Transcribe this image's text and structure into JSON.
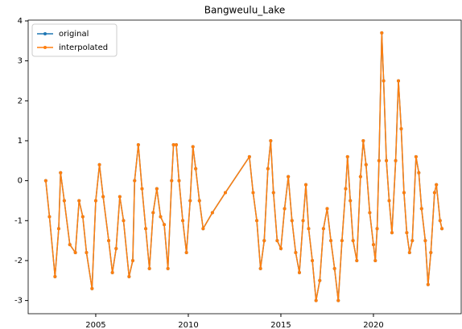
{
  "chart_data": {
    "type": "line",
    "title": "Bangweulu_Lake",
    "x": [
      2002.3,
      2002.5,
      2002.8,
      2003.0,
      2003.1,
      2003.3,
      2003.6,
      2003.9,
      2004.1,
      2004.3,
      2004.5,
      2004.8,
      2005.0,
      2005.2,
      2005.4,
      2005.7,
      2005.9,
      2006.1,
      2006.3,
      2006.5,
      2006.8,
      2007.0,
      2007.1,
      2007.3,
      2007.5,
      2007.7,
      2007.9,
      2008.1,
      2008.3,
      2008.5,
      2008.7,
      2008.9,
      2009.1,
      2009.2,
      2009.35,
      2009.5,
      2009.7,
      2009.9,
      2010.1,
      2010.25,
      2010.4,
      2010.6,
      2010.8,
      2011.3,
      2012.0,
      2013.3,
      2013.5,
      2013.7,
      2013.9,
      2014.1,
      2014.3,
      2014.45,
      2014.6,
      2014.8,
      2015.0,
      2015.2,
      2015.4,
      2015.6,
      2015.8,
      2016.0,
      2016.2,
      2016.35,
      2016.5,
      2016.7,
      2016.9,
      2017.1,
      2017.3,
      2017.5,
      2017.7,
      2017.9,
      2018.1,
      2018.3,
      2018.5,
      2018.6,
      2018.75,
      2018.9,
      2019.1,
      2019.3,
      2019.45,
      2019.6,
      2019.8,
      2020.0,
      2020.1,
      2020.2,
      2020.3,
      2020.45,
      2020.55,
      2020.7,
      2020.85,
      2021.0,
      2021.2,
      2021.35,
      2021.5,
      2021.65,
      2021.8,
      2021.95,
      2022.1,
      2022.3,
      2022.45,
      2022.6,
      2022.8,
      2022.95,
      2023.1,
      2023.3,
      2023.4,
      2023.6,
      2023.7
    ],
    "series": [
      {
        "name": "original",
        "color": "#1f77b4",
        "values": [
          0,
          -0.9,
          -2.4,
          -1.2,
          0.2,
          -0.5,
          -1.6,
          -1.8,
          -0.5,
          -0.9,
          -1.8,
          -2.7,
          -0.5,
          0.4,
          -0.4,
          -1.5,
          -2.3,
          -1.7,
          -0.4,
          -1.0,
          -2.4,
          -2.0,
          0.0,
          0.9,
          -0.2,
          -1.2,
          -2.2,
          -0.8,
          -0.2,
          -0.9,
          -1.1,
          -2.2,
          0.0,
          0.9,
          0.9,
          0.0,
          -1.0,
          -1.8,
          -0.5,
          0.85,
          0.3,
          -0.5,
          -1.2,
          -0.8,
          -0.3,
          0.6,
          -0.3,
          -1.0,
          -2.2,
          -1.5,
          0.3,
          1.0,
          -0.3,
          -1.5,
          -1.7,
          -0.7,
          0.1,
          -1.0,
          -1.8,
          -2.3,
          -1.0,
          -0.1,
          -1.2,
          -2.0,
          -3.0,
          -2.5,
          -1.2,
          -0.7,
          -1.5,
          -2.2,
          -3.0,
          -1.5,
          -0.2,
          0.6,
          -0.5,
          -1.5,
          -2.0,
          0.1,
          1.0,
          0.4,
          -0.8,
          -1.6,
          -2.0,
          -1.2,
          0.5,
          3.7,
          2.5,
          0.5,
          -0.5,
          -1.3,
          0.5,
          2.5,
          1.3,
          -0.3,
          -1.3,
          -1.8,
          -1.5,
          0.6,
          0.2,
          -0.7,
          -1.5,
          -2.6,
          -1.8,
          -0.3,
          -0.1,
          -1.0,
          -1.2
        ]
      },
      {
        "name": "interpolated",
        "color": "#ff7f0e",
        "values": [
          0,
          -0.9,
          -2.4,
          -1.2,
          0.2,
          -0.5,
          -1.6,
          -1.8,
          -0.5,
          -0.9,
          -1.8,
          -2.7,
          -0.5,
          0.4,
          -0.4,
          -1.5,
          -2.3,
          -1.7,
          -0.4,
          -1.0,
          -2.4,
          -2.0,
          0.0,
          0.9,
          -0.2,
          -1.2,
          -2.2,
          -0.8,
          -0.2,
          -0.9,
          -1.1,
          -2.2,
          0.0,
          0.9,
          0.9,
          0.0,
          -1.0,
          -1.8,
          -0.5,
          0.85,
          0.3,
          -0.5,
          -1.2,
          -0.8,
          -0.3,
          0.6,
          -0.3,
          -1.0,
          -2.2,
          -1.5,
          0.3,
          1.0,
          -0.3,
          -1.5,
          -1.7,
          -0.7,
          0.1,
          -1.0,
          -1.8,
          -2.3,
          -1.0,
          -0.1,
          -1.2,
          -2.0,
          -3.0,
          -2.5,
          -1.2,
          -0.7,
          -1.5,
          -2.2,
          -3.0,
          -1.5,
          -0.2,
          0.6,
          -0.5,
          -1.5,
          -2.0,
          0.1,
          1.0,
          0.4,
          -0.8,
          -1.6,
          -2.0,
          -1.2,
          0.5,
          3.7,
          2.5,
          0.5,
          -0.5,
          -1.3,
          0.5,
          2.5,
          1.3,
          -0.3,
          -1.3,
          -1.8,
          -1.5,
          0.6,
          0.2,
          -0.7,
          -1.5,
          -2.6,
          -1.8,
          -0.3,
          -0.1,
          -1.0,
          -1.2
        ]
      }
    ],
    "xlim": [
      2001.35,
      2024.74
    ],
    "xticks": [
      2005,
      2010,
      2015,
      2020
    ],
    "ylim": [
      -3.33,
      4.02
    ],
    "yticks": [
      -3,
      -2,
      -1,
      0,
      1,
      2,
      3,
      4
    ],
    "legend": "upper left"
  }
}
